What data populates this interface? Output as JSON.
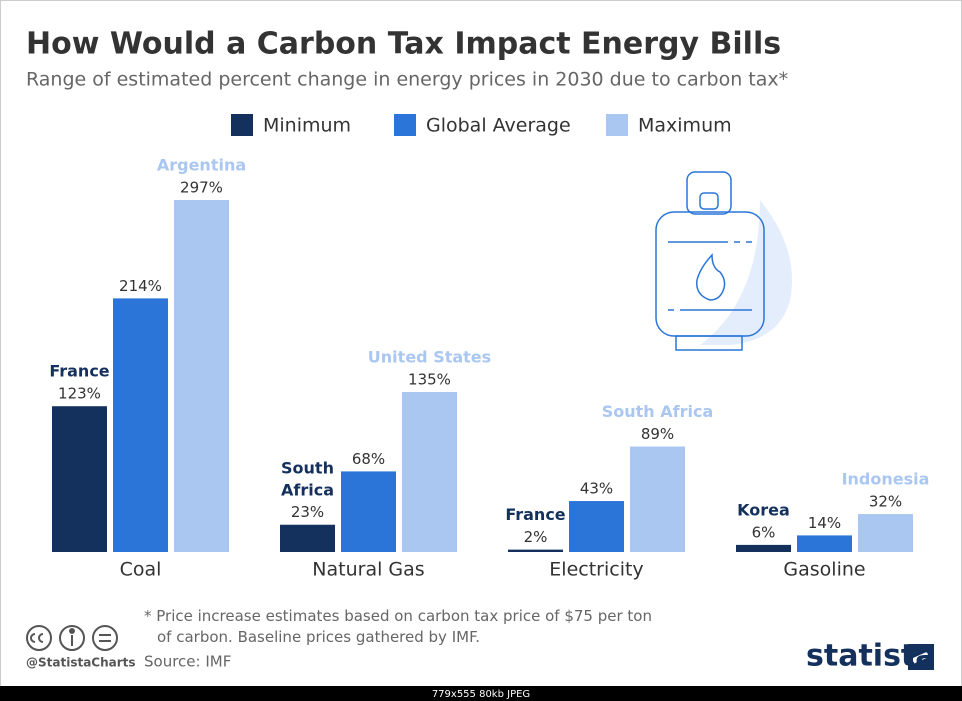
{
  "chart_data": {
    "type": "bar",
    "title": "How Would a Carbon Tax Impact Energy Bills",
    "subtitle": "Range of estimated percent change in energy prices in 2030 due to carbon tax*",
    "categories": [
      "Coal",
      "Natural Gas",
      "Electricity",
      "Gasoline"
    ],
    "series": [
      {
        "name": "Minimum",
        "color": "#14305c",
        "values": [
          123,
          23,
          2,
          6
        ],
        "value_labels": [
          "123%",
          "23%",
          "2%",
          "6%"
        ],
        "countries": [
          "France",
          "South Africa",
          "France",
          "Korea"
        ]
      },
      {
        "name": "Global Average",
        "color": "#2b75d9",
        "values": [
          214,
          68,
          43,
          14
        ],
        "value_labels": [
          "214%",
          "68%",
          "43%",
          "14%"
        ]
      },
      {
        "name": "Maximum",
        "color": "#a9c7f0",
        "values": [
          297,
          135,
          89,
          32
        ],
        "value_labels": [
          "297%",
          "135%",
          "89%",
          "32%"
        ],
        "countries": [
          "Argentina",
          "United States",
          "South Africa",
          "Indonesia"
        ]
      }
    ],
    "footnote": "* Price increase estimates based on carbon tax price of $75 per ton of carbon. Baseline prices gathered by IMF.",
    "source": "Source: IMF",
    "handle": "@StatistaCharts",
    "logo": "statista"
  },
  "viewer_label": "779x555 80kb JPEG"
}
